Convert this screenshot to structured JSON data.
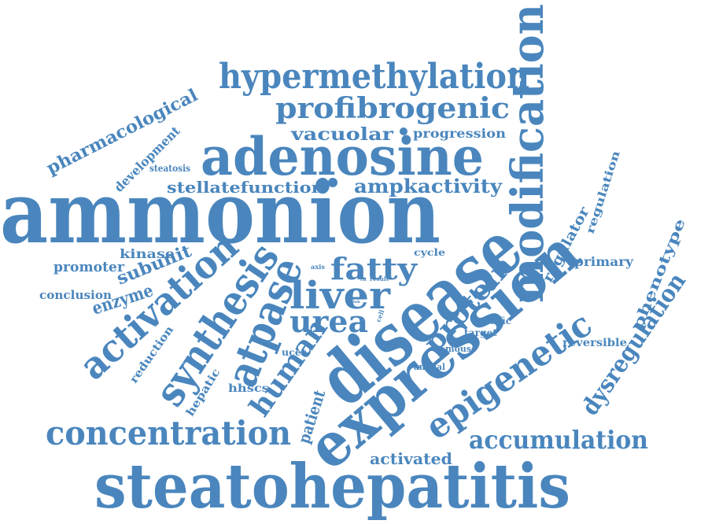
{
  "word_cloud": {
    "color": "#4a86bd",
    "words": [
      {
        "text": "ammonion",
        "weight": 100
      },
      {
        "text": "steatohepatitis",
        "weight": 95
      },
      {
        "text": "disease",
        "weight": 92
      },
      {
        "text": "expression",
        "weight": 88
      },
      {
        "text": "modification",
        "weight": 80
      },
      {
        "text": "adenosine",
        "weight": 78
      },
      {
        "text": "hypermethylation",
        "weight": 70
      },
      {
        "text": "synthesis",
        "weight": 68
      },
      {
        "text": "epigenetic",
        "weight": 65
      },
      {
        "text": "activation",
        "weight": 64
      },
      {
        "text": "concentration",
        "weight": 62
      },
      {
        "text": "profibrogenic",
        "weight": 60
      },
      {
        "text": "atpase",
        "weight": 60
      },
      {
        "text": "liver",
        "weight": 58
      },
      {
        "text": "human",
        "weight": 55
      },
      {
        "text": "fatty",
        "weight": 55
      },
      {
        "text": "urea",
        "weight": 54
      },
      {
        "text": "protein",
        "weight": 52
      },
      {
        "text": "accumulation",
        "weight": 50
      },
      {
        "text": "dysregulation",
        "weight": 48
      },
      {
        "text": "pharmacological",
        "weight": 42
      },
      {
        "text": "ampkactivity",
        "weight": 38
      },
      {
        "text": "stellatefunction",
        "weight": 36
      },
      {
        "text": "vacuolar",
        "weight": 34
      },
      {
        "text": "subunit",
        "weight": 32
      },
      {
        "text": "regulator",
        "weight": 30
      },
      {
        "text": "phenotype",
        "weight": 28
      },
      {
        "text": "patient",
        "weight": 28
      },
      {
        "text": "enzyme",
        "weight": 28
      },
      {
        "text": "activated",
        "weight": 26
      },
      {
        "text": "promoter",
        "weight": 25
      },
      {
        "text": "development",
        "weight": 24
      },
      {
        "text": "regulation",
        "weight": 24
      },
      {
        "text": "primary",
        "weight": 22
      },
      {
        "text": "progression",
        "weight": 22
      },
      {
        "text": "reduction",
        "weight": 22
      },
      {
        "text": "hepatic",
        "weight": 22
      },
      {
        "text": "hhscs",
        "weight": 22
      },
      {
        "text": "kinase",
        "weight": 22
      },
      {
        "text": "conclusion",
        "weight": 21
      },
      {
        "text": "reversible",
        "weight": 20
      },
      {
        "text": "steatosis",
        "weight": 18
      },
      {
        "text": "uces",
        "weight": 16
      },
      {
        "text": "target",
        "weight": 15
      },
      {
        "text": "specific",
        "weight": 14
      },
      {
        "text": "mouse",
        "weight": 14
      },
      {
        "text": "animal",
        "weight": 14
      },
      {
        "text": "cycle",
        "weight": 14
      },
      {
        "text": "axis",
        "weight": 10
      },
      {
        "text": "cell",
        "weight": 10
      },
      {
        "text": "result",
        "weight": 8
      },
      {
        "text": "risk",
        "weight": 6
      },
      {
        "text": "rat",
        "weight": 5
      }
    ]
  }
}
